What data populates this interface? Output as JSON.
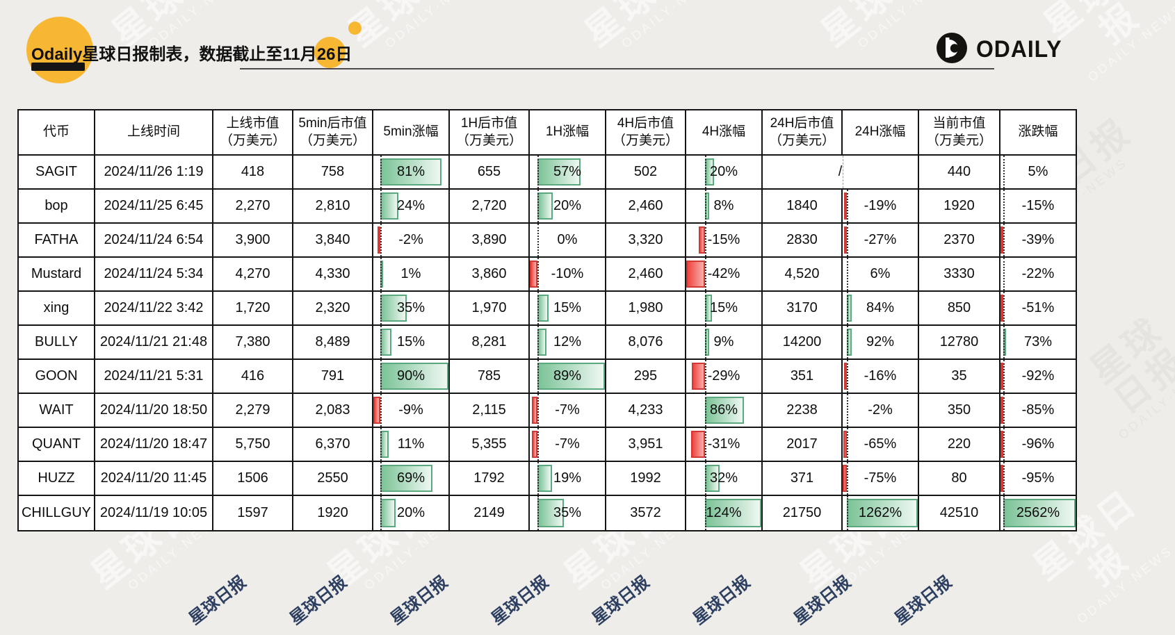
{
  "title": "Odaily星球日报制表，数据截止至11月26日",
  "brand": {
    "name": "ODAILY"
  },
  "watermark": {
    "main": "星球日报",
    "sub": "ODAILY·NEWS"
  },
  "colors": {
    "accent_yellow": "#f7b733",
    "bar_positive_green": "#6fbe8d",
    "bar_negative_red": "#e8423d",
    "table_border": "#141414",
    "background": "#efedea",
    "footer_navy": "#1d3156"
  },
  "chart_data": {
    "type": "table",
    "title": "Odaily星球日报制表，数据截止至11月26日",
    "unit_note": "市值单位：万美元；涨幅列以数据条（绿=涨，红=跌）显示",
    "columns": [
      "代币",
      "上线时间",
      "上线市值\n（万美元）",
      "5min后市值\n（万美元）",
      "5min涨幅",
      "1H后市值\n（万美元）",
      "1H涨幅",
      "4H后市值\n（万美元）",
      "4H涨幅",
      "24H后市值\n（万美元）",
      "24H涨幅",
      "当前市值\n（万美元）",
      "涨跌幅"
    ],
    "pct_columns": [
      4,
      6,
      8,
      10,
      12
    ],
    "rows": [
      [
        "SAGIT",
        "2024/11/26 1:19",
        "418",
        "758",
        81,
        "655",
        57,
        "502",
        20,
        {
          "span": 2,
          "text": "/"
        },
        null,
        "440",
        5
      ],
      [
        "bop",
        "2024/11/25 6:45",
        "2,270",
        "2,810",
        24,
        "2,720",
        20,
        "2,460",
        8,
        "1840",
        -19,
        "1920",
        -15
      ],
      [
        "FATHA",
        "2024/11/24 6:54",
        "3,900",
        "3,840",
        -2,
        "3,890",
        0,
        "3,320",
        -15,
        "2830",
        -27,
        "2370",
        -39
      ],
      [
        "Mustard",
        "2024/11/24 5:34",
        "4,270",
        "4,330",
        1,
        "3,860",
        -10,
        "2,460",
        -42,
        "4,520",
        6,
        "3330",
        -22
      ],
      [
        "xing",
        "2024/11/22 3:42",
        "1,720",
        "2,320",
        35,
        "1,970",
        15,
        "1,980",
        15,
        "3170",
        84,
        "850",
        -51
      ],
      [
        "BULLY",
        "2024/11/21 21:48",
        "7,380",
        "8,489",
        15,
        "8,281",
        12,
        "8,076",
        9,
        "14200",
        92,
        "12780",
        73
      ],
      [
        "GOON",
        "2024/11/21 5:31",
        "416",
        "791",
        90,
        "785",
        89,
        "295",
        -29,
        "351",
        -16,
        "35",
        -92
      ],
      [
        "WAIT",
        "2024/11/20 18:50",
        "2,279",
        "2,083",
        -9,
        "2,115",
        -7,
        "4,233",
        86,
        "2238",
        -2,
        "350",
        -85
      ],
      [
        "QUANT",
        "2024/11/20 18:47",
        "5,750",
        "6,370",
        11,
        "5,355",
        -7,
        "3,951",
        -31,
        "2017",
        -65,
        "220",
        -96
      ],
      [
        "HUZZ",
        "2024/11/20 11:45",
        "1506",
        "2550",
        69,
        "1792",
        19,
        "1992",
        32,
        "371",
        -75,
        "80",
        -95
      ],
      [
        "CHILLGUY",
        "2024/11/19 10:05",
        "1597",
        "1920",
        20,
        "2149",
        35,
        "3572",
        124,
        "21750",
        1262,
        "42510",
        2562
      ]
    ]
  }
}
